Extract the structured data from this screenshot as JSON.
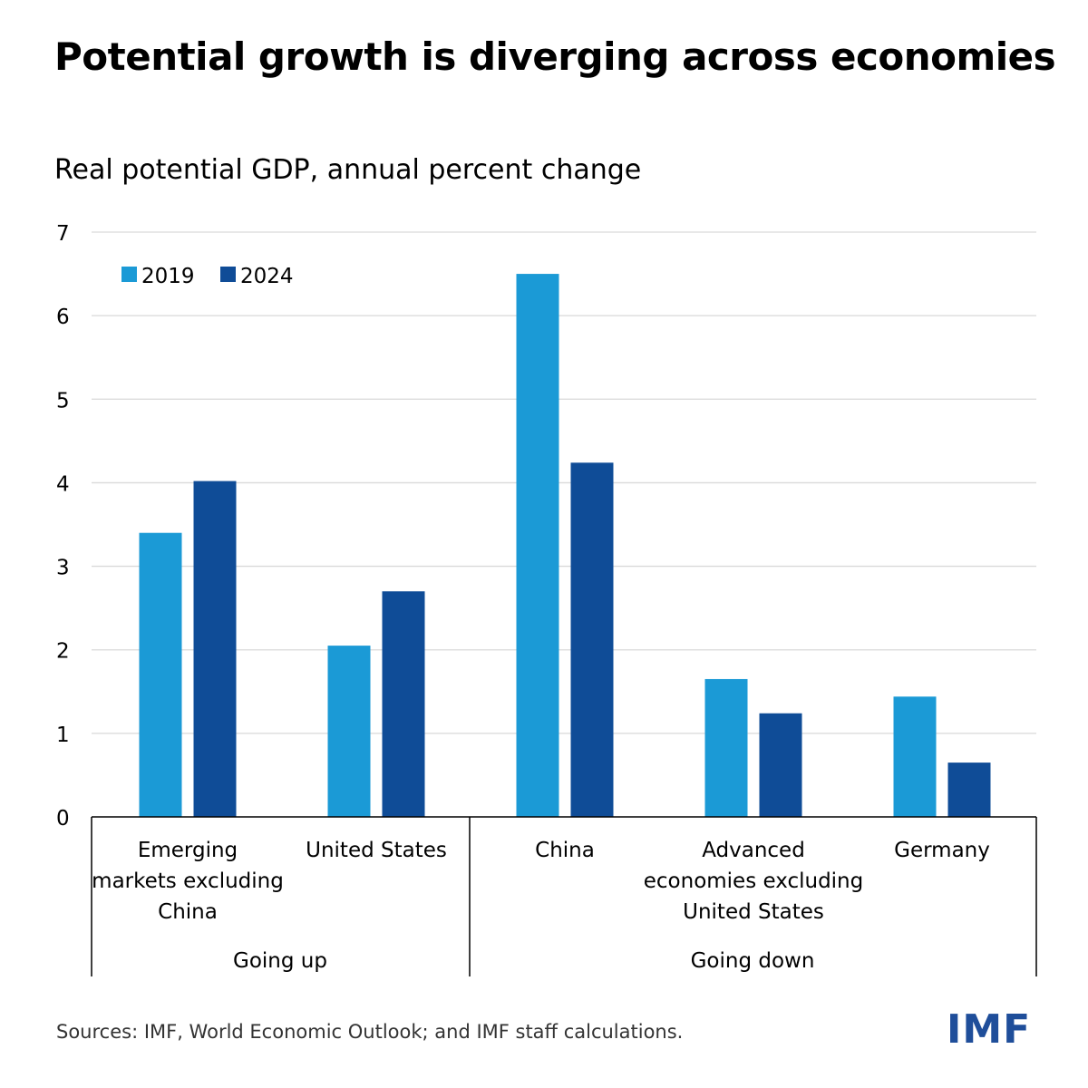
{
  "header": {
    "title": "Potential growth is diverging across economies"
  },
  "footer": {
    "source": "Sources: IMF, World Economic Outlook; and IMF staff calculations.",
    "logo": "IMF"
  },
  "colors": {
    "series_2019": "#1b9ad6",
    "series_2024": "#0f4c97",
    "grid": "#d9d9d9",
    "axis": "#000000",
    "logo": "#1f4e9a"
  },
  "chart_data": {
    "type": "bar",
    "title": "Potential growth is diverging across economies",
    "subtitle": "Real potential GDP, annual percent change",
    "ylabel": "",
    "xlabel": "",
    "ylim": [
      0,
      7
    ],
    "yticks": [
      0,
      1,
      2,
      3,
      4,
      5,
      6,
      7
    ],
    "grid": true,
    "legend_position": "top-left",
    "categories": [
      [
        "Emerging",
        "markets excluding",
        "China"
      ],
      [
        "United States"
      ],
      [
        "China"
      ],
      [
        "Advanced",
        "economies excluding",
        "United States"
      ],
      [
        "Germany"
      ]
    ],
    "groups": [
      {
        "label": "Going up",
        "categories": [
          0,
          1
        ]
      },
      {
        "label": "Going down",
        "categories": [
          2,
          3,
          4
        ]
      }
    ],
    "series": [
      {
        "name": "2019",
        "values": [
          3.4,
          2.05,
          6.5,
          1.65,
          1.44
        ]
      },
      {
        "name": "2024",
        "values": [
          4.02,
          2.7,
          4.24,
          1.24,
          0.65
        ]
      }
    ]
  }
}
